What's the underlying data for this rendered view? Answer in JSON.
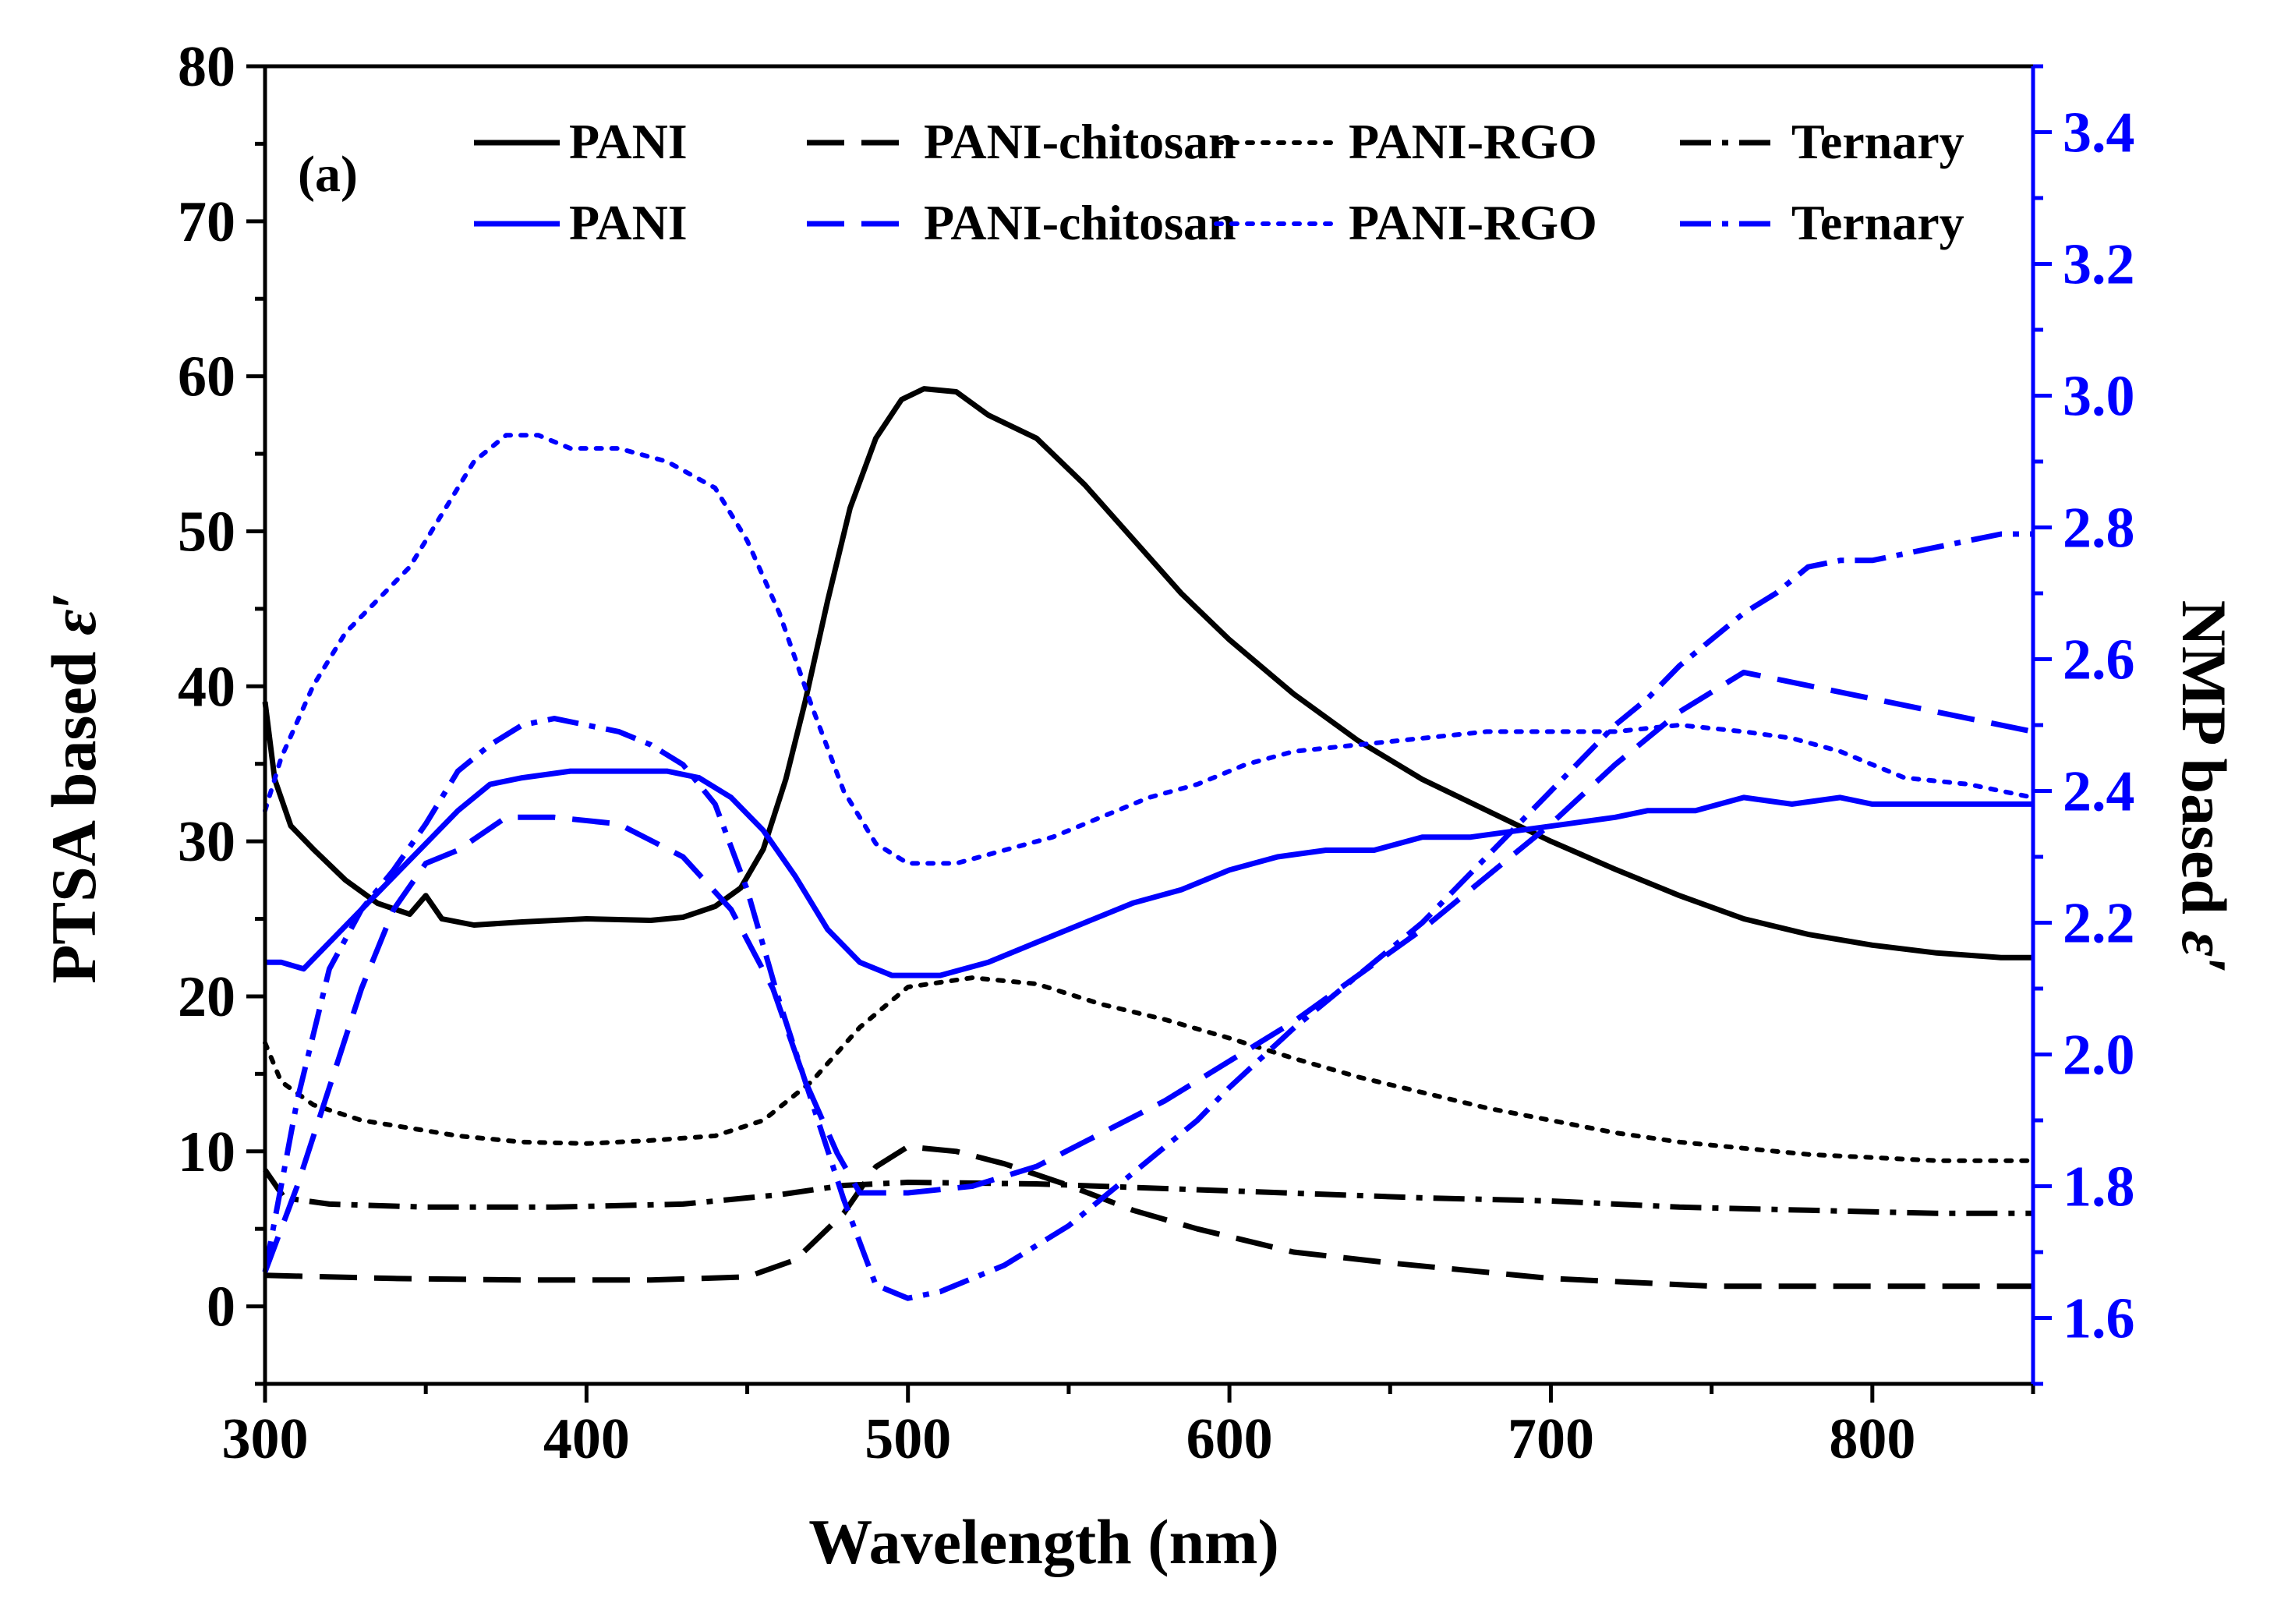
{
  "chart_data": {
    "type": "line",
    "panel_label": "(a)",
    "xlabel": "Wavelength (nm)",
    "ylabel_left": "PTSA based ε′",
    "ylabel_left_text": "PTSA based ",
    "ylabel_right": "NMP based ε′",
    "ylabel_right_text": "NMP based ",
    "epsilon_symbol": "ε",
    "prime_symbol": "′",
    "xlim": [
      300,
      850
    ],
    "ylim_left": [
      -5,
      80
    ],
    "ylim_right": [
      1.5,
      3.5
    ],
    "x_ticks": [
      "300",
      "400",
      "500",
      "600",
      "700",
      "800"
    ],
    "y_left_ticks": [
      "0",
      "10",
      "20",
      "30",
      "40",
      "50",
      "60",
      "70",
      "80"
    ],
    "y_right_ticks": [
      "1.6",
      "1.8",
      "2.0",
      "2.2",
      "2.4",
      "2.6",
      "2.8",
      "3.0",
      "3.2",
      "3.4"
    ],
    "colors": {
      "left_axis": "#000000",
      "right_axis": "#0000ff",
      "black_series": "#000000",
      "blue_series": "#0000ff"
    },
    "series": [
      {
        "name": "PANI",
        "axis": "left",
        "color": "#000000",
        "dash": "solid",
        "points": [
          [
            300,
            39
          ],
          [
            303,
            34
          ],
          [
            308,
            31
          ],
          [
            315,
            29.5
          ],
          [
            325,
            27.5
          ],
          [
            335,
            26
          ],
          [
            345,
            25.3
          ],
          [
            350,
            26.5
          ],
          [
            355,
            25
          ],
          [
            365,
            24.6
          ],
          [
            380,
            24.8
          ],
          [
            400,
            25
          ],
          [
            420,
            24.9
          ],
          [
            430,
            25.1
          ],
          [
            440,
            25.8
          ],
          [
            448,
            27
          ],
          [
            455,
            29.5
          ],
          [
            462,
            34
          ],
          [
            468,
            39
          ],
          [
            475,
            45.5
          ],
          [
            482,
            51.5
          ],
          [
            490,
            56
          ],
          [
            498,
            58.5
          ],
          [
            505,
            59.2
          ],
          [
            515,
            59
          ],
          [
            525,
            57.5
          ],
          [
            540,
            56
          ],
          [
            555,
            53
          ],
          [
            570,
            49.5
          ],
          [
            585,
            46
          ],
          [
            600,
            43
          ],
          [
            620,
            39.5
          ],
          [
            640,
            36.5
          ],
          [
            660,
            34
          ],
          [
            680,
            32
          ],
          [
            700,
            30
          ],
          [
            720,
            28.2
          ],
          [
            740,
            26.5
          ],
          [
            760,
            25
          ],
          [
            780,
            24
          ],
          [
            800,
            23.3
          ],
          [
            820,
            22.8
          ],
          [
            840,
            22.5
          ],
          [
            850,
            22.5
          ]
        ]
      },
      {
        "name": "PANI-chitosan",
        "axis": "left",
        "color": "#000000",
        "dash": "dash",
        "points": [
          [
            300,
            2
          ],
          [
            340,
            1.8
          ],
          [
            380,
            1.7
          ],
          [
            420,
            1.7
          ],
          [
            450,
            1.9
          ],
          [
            465,
            3
          ],
          [
            480,
            6
          ],
          [
            490,
            9
          ],
          [
            500,
            10.3
          ],
          [
            515,
            10
          ],
          [
            530,
            9.2
          ],
          [
            550,
            7.8
          ],
          [
            570,
            6.2
          ],
          [
            590,
            5
          ],
          [
            620,
            3.5
          ],
          [
            650,
            2.8
          ],
          [
            700,
            1.8
          ],
          [
            750,
            1.3
          ],
          [
            800,
            1.3
          ],
          [
            850,
            1.3
          ]
        ]
      },
      {
        "name": "PANI-RGO",
        "axis": "left",
        "color": "#000000",
        "dash": "dot",
        "points": [
          [
            300,
            17
          ],
          [
            305,
            14.5
          ],
          [
            315,
            13
          ],
          [
            330,
            12
          ],
          [
            345,
            11.5
          ],
          [
            360,
            11
          ],
          [
            380,
            10.6
          ],
          [
            400,
            10.5
          ],
          [
            420,
            10.7
          ],
          [
            440,
            11
          ],
          [
            455,
            12
          ],
          [
            470,
            14.5
          ],
          [
            485,
            18
          ],
          [
            500,
            20.6
          ],
          [
            520,
            21.2
          ],
          [
            540,
            20.8
          ],
          [
            560,
            19.5
          ],
          [
            580,
            18.5
          ],
          [
            600,
            17.3
          ],
          [
            620,
            16
          ],
          [
            640,
            14.8
          ],
          [
            660,
            13.8
          ],
          [
            680,
            12.8
          ],
          [
            700,
            12
          ],
          [
            720,
            11.2
          ],
          [
            740,
            10.6
          ],
          [
            760,
            10.2
          ],
          [
            780,
            9.8
          ],
          [
            800,
            9.6
          ],
          [
            820,
            9.4
          ],
          [
            850,
            9.4
          ]
        ]
      },
      {
        "name": "Ternary",
        "axis": "left",
        "color": "#000000",
        "dash": "dashdot",
        "points": [
          [
            300,
            8.8
          ],
          [
            306,
            7
          ],
          [
            320,
            6.6
          ],
          [
            350,
            6.4
          ],
          [
            390,
            6.4
          ],
          [
            430,
            6.6
          ],
          [
            460,
            7.2
          ],
          [
            480,
            7.8
          ],
          [
            500,
            8
          ],
          [
            540,
            7.9
          ],
          [
            580,
            7.6
          ],
          [
            620,
            7.3
          ],
          [
            660,
            7
          ],
          [
            700,
            6.8
          ],
          [
            740,
            6.4
          ],
          [
            780,
            6.2
          ],
          [
            820,
            6
          ],
          [
            850,
            6
          ]
        ]
      },
      {
        "name": "PANI",
        "axis": "right",
        "color": "#0000ff",
        "dash": "solid",
        "points": [
          [
            300,
            2.14
          ],
          [
            305,
            2.14
          ],
          [
            312,
            2.13
          ],
          [
            320,
            2.17
          ],
          [
            330,
            2.22
          ],
          [
            340,
            2.27
          ],
          [
            350,
            2.32
          ],
          [
            360,
            2.37
          ],
          [
            370,
            2.41
          ],
          [
            380,
            2.42
          ],
          [
            395,
            2.43
          ],
          [
            410,
            2.43
          ],
          [
            425,
            2.43
          ],
          [
            435,
            2.42
          ],
          [
            445,
            2.39
          ],
          [
            455,
            2.34
          ],
          [
            465,
            2.27
          ],
          [
            475,
            2.19
          ],
          [
            485,
            2.14
          ],
          [
            495,
            2.12
          ],
          [
            510,
            2.12
          ],
          [
            525,
            2.14
          ],
          [
            540,
            2.17
          ],
          [
            555,
            2.2
          ],
          [
            570,
            2.23
          ],
          [
            585,
            2.25
          ],
          [
            600,
            2.28
          ],
          [
            615,
            2.3
          ],
          [
            630,
            2.31
          ],
          [
            645,
            2.31
          ],
          [
            660,
            2.33
          ],
          [
            675,
            2.33
          ],
          [
            690,
            2.34
          ],
          [
            705,
            2.35
          ],
          [
            720,
            2.36
          ],
          [
            730,
            2.37
          ],
          [
            745,
            2.37
          ],
          [
            760,
            2.39
          ],
          [
            775,
            2.38
          ],
          [
            790,
            2.39
          ],
          [
            800,
            2.38
          ],
          [
            820,
            2.38
          ],
          [
            840,
            2.38
          ],
          [
            850,
            2.38
          ]
        ]
      },
      {
        "name": "PANI-chitosan",
        "axis": "right",
        "color": "#0000ff",
        "dash": "dash",
        "points": [
          [
            300,
            1.67
          ],
          [
            310,
            1.8
          ],
          [
            320,
            1.95
          ],
          [
            330,
            2.1
          ],
          [
            340,
            2.22
          ],
          [
            350,
            2.29
          ],
          [
            360,
            2.31
          ],
          [
            375,
            2.36
          ],
          [
            390,
            2.36
          ],
          [
            410,
            2.35
          ],
          [
            430,
            2.3
          ],
          [
            445,
            2.22
          ],
          [
            458,
            2.1
          ],
          [
            468,
            1.96
          ],
          [
            478,
            1.85
          ],
          [
            485,
            1.79
          ],
          [
            500,
            1.79
          ],
          [
            520,
            1.8
          ],
          [
            540,
            1.83
          ],
          [
            560,
            1.88
          ],
          [
            580,
            1.93
          ],
          [
            600,
            1.99
          ],
          [
            620,
            2.05
          ],
          [
            640,
            2.12
          ],
          [
            660,
            2.19
          ],
          [
            680,
            2.27
          ],
          [
            700,
            2.35
          ],
          [
            720,
            2.44
          ],
          [
            740,
            2.52
          ],
          [
            760,
            2.58
          ],
          [
            780,
            2.56
          ],
          [
            800,
            2.54
          ],
          [
            820,
            2.52
          ],
          [
            850,
            2.49
          ]
        ]
      },
      {
        "name": "PANI-RGO",
        "axis": "right",
        "color": "#0000ff",
        "dash": "dot",
        "points": [
          [
            300,
            2.37
          ],
          [
            305,
            2.45
          ],
          [
            315,
            2.56
          ],
          [
            325,
            2.64
          ],
          [
            335,
            2.69
          ],
          [
            345,
            2.74
          ],
          [
            355,
            2.82
          ],
          [
            365,
            2.9
          ],
          [
            375,
            2.94
          ],
          [
            385,
            2.94
          ],
          [
            395,
            2.92
          ],
          [
            410,
            2.92
          ],
          [
            425,
            2.9
          ],
          [
            440,
            2.86
          ],
          [
            450,
            2.78
          ],
          [
            460,
            2.67
          ],
          [
            470,
            2.53
          ],
          [
            480,
            2.4
          ],
          [
            490,
            2.32
          ],
          [
            500,
            2.29
          ],
          [
            515,
            2.29
          ],
          [
            530,
            2.31
          ],
          [
            545,
            2.33
          ],
          [
            560,
            2.36
          ],
          [
            575,
            2.39
          ],
          [
            590,
            2.41
          ],
          [
            605,
            2.44
          ],
          [
            620,
            2.46
          ],
          [
            640,
            2.47
          ],
          [
            660,
            2.48
          ],
          [
            680,
            2.49
          ],
          [
            700,
            2.49
          ],
          [
            720,
            2.49
          ],
          [
            740,
            2.5
          ],
          [
            760,
            2.49
          ],
          [
            775,
            2.48
          ],
          [
            790,
            2.46
          ],
          [
            800,
            2.44
          ],
          [
            810,
            2.42
          ],
          [
            830,
            2.41
          ],
          [
            840,
            2.4
          ],
          [
            850,
            2.39
          ]
        ]
      },
      {
        "name": "Ternary",
        "axis": "right",
        "color": "#0000ff",
        "dash": "dashdot",
        "points": [
          [
            300,
            1.67
          ],
          [
            310,
            1.93
          ],
          [
            320,
            2.13
          ],
          [
            330,
            2.22
          ],
          [
            340,
            2.28
          ],
          [
            350,
            2.35
          ],
          [
            360,
            2.43
          ],
          [
            370,
            2.47
          ],
          [
            380,
            2.5
          ],
          [
            390,
            2.51
          ],
          [
            400,
            2.5
          ],
          [
            410,
            2.49
          ],
          [
            420,
            2.47
          ],
          [
            430,
            2.44
          ],
          [
            440,
            2.38
          ],
          [
            450,
            2.25
          ],
          [
            460,
            2.08
          ],
          [
            470,
            1.93
          ],
          [
            480,
            1.78
          ],
          [
            490,
            1.65
          ],
          [
            500,
            1.63
          ],
          [
            510,
            1.64
          ],
          [
            520,
            1.66
          ],
          [
            530,
            1.68
          ],
          [
            540,
            1.71
          ],
          [
            550,
            1.74
          ],
          [
            560,
            1.78
          ],
          [
            570,
            1.82
          ],
          [
            580,
            1.86
          ],
          [
            590,
            1.9
          ],
          [
            600,
            1.95
          ],
          [
            620,
            2.04
          ],
          [
            640,
            2.12
          ],
          [
            660,
            2.2
          ],
          [
            680,
            2.3
          ],
          [
            700,
            2.4
          ],
          [
            710,
            2.45
          ],
          [
            720,
            2.5
          ],
          [
            730,
            2.54
          ],
          [
            740,
            2.59
          ],
          [
            750,
            2.63
          ],
          [
            760,
            2.67
          ],
          [
            770,
            2.7
          ],
          [
            780,
            2.74
          ],
          [
            790,
            2.75
          ],
          [
            800,
            2.75
          ],
          [
            810,
            2.76
          ],
          [
            820,
            2.77
          ],
          [
            830,
            2.78
          ],
          [
            840,
            2.79
          ],
          [
            850,
            2.79
          ]
        ]
      }
    ],
    "legend": {
      "placement": "top-right",
      "rows": [
        [
          {
            "label": "PANI",
            "series": 0
          },
          {
            "label": "PANI-chitosan",
            "series": 1
          },
          {
            "label": "PANI-RGO",
            "series": 2
          },
          {
            "label": "Ternary",
            "series": 3
          }
        ],
        [
          {
            "label": "PANI",
            "series": 4
          },
          {
            "label": "PANI-chitosan",
            "series": 5
          },
          {
            "label": "PANI-RGO",
            "series": 6
          },
          {
            "label": "Ternary",
            "series": 7
          }
        ]
      ]
    }
  }
}
